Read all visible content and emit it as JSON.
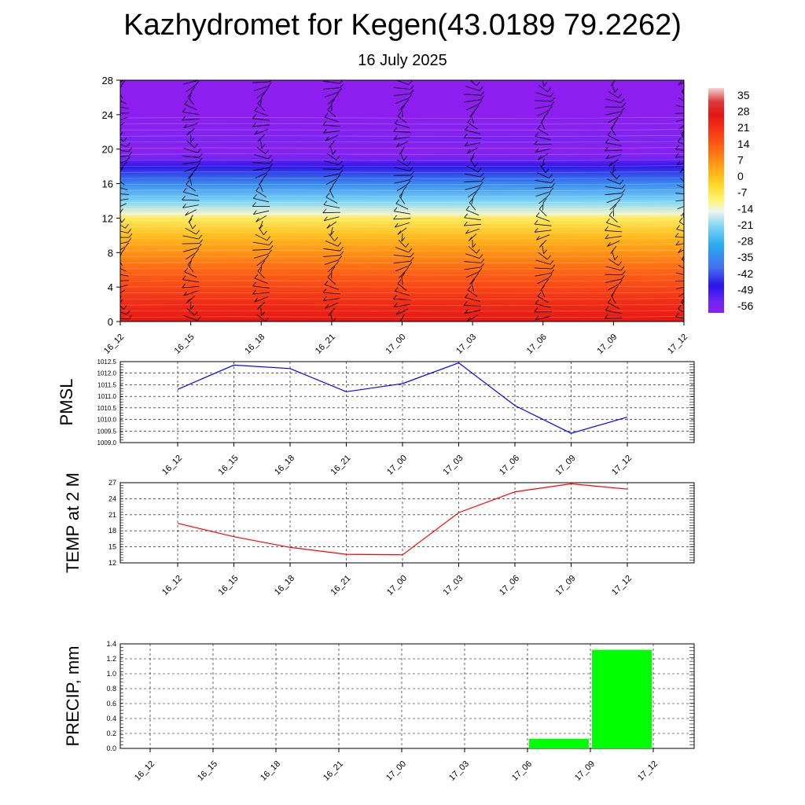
{
  "title": "Kazhydromet for Kegen(43.0189 79.2262)",
  "subtitle": "16 July 2025",
  "time_labels": [
    "16_12",
    "16_15",
    "16_18",
    "16_21",
    "17_00",
    "17_03",
    "17_06",
    "17_09",
    "17_12"
  ],
  "colors": {
    "pmsl_line": "#0000ff",
    "temp_line": "#ff0000",
    "precip_bar": "#00ff00",
    "grid": "#000000"
  },
  "chart_data": [
    {
      "type": "heatmap",
      "title": "",
      "xlabel": "",
      "ylabel": "",
      "x": [
        "16_12",
        "16_15",
        "16_18",
        "16_21",
        "17_00",
        "17_03",
        "17_06",
        "17_09",
        "17_12"
      ],
      "y_ticks": [
        0,
        4,
        8,
        12,
        16,
        20,
        24,
        28
      ],
      "ylim": [
        0,
        28
      ],
      "colorbar_labels": [
        35,
        28,
        21,
        14,
        7,
        0,
        -7,
        -14,
        -21,
        -28,
        -35,
        -42,
        -49,
        -56
      ],
      "colorbar_range": [
        -59,
        38
      ],
      "temperature_profile": {
        "heights": [
          0,
          2,
          4,
          6,
          8,
          10,
          12,
          12.5,
          14,
          16,
          18,
          19,
          20,
          21,
          22,
          24,
          28
        ],
        "values": [
          26,
          22,
          17,
          12,
          6,
          0,
          -8,
          -14,
          -22,
          -35,
          -48,
          -56,
          -59,
          -56,
          -58,
          -59,
          -59
        ]
      },
      "wind_barbs": true
    },
    {
      "type": "line",
      "ylabel": "PMSL",
      "x": [
        "16_12",
        "16_15",
        "16_18",
        "16_21",
        "17_00",
        "17_03",
        "17_06",
        "17_09",
        "17_12"
      ],
      "series": [
        {
          "values": [
            1011.3,
            1012.35,
            1012.2,
            1011.2,
            1011.55,
            1012.45,
            1010.6,
            1009.4,
            1010.1
          ]
        }
      ],
      "ylim": [
        1009.0,
        1012.5
      ],
      "y_ticks": [
        "1009.0",
        "1009.5",
        "1010.0",
        "1010.5",
        "1011.0",
        "1011.5",
        "1012.0",
        "1012.5"
      ],
      "grid": true
    },
    {
      "type": "line",
      "ylabel": "TEMP at 2 M",
      "x": [
        "16_12",
        "16_15",
        "16_18",
        "16_21",
        "17_00",
        "17_03",
        "17_06",
        "17_09",
        "17_12"
      ],
      "series": [
        {
          "values": [
            19.4,
            16.9,
            14.9,
            13.6,
            13.5,
            21.4,
            25.3,
            26.8,
            25.8
          ]
        }
      ],
      "ylim": [
        12,
        27
      ],
      "y_ticks": [
        "12",
        "15",
        "18",
        "21",
        "24",
        "27"
      ],
      "grid": true
    },
    {
      "type": "bar",
      "ylabel": "PRECIP, mm",
      "categories": [
        "16_12",
        "16_15",
        "16_18",
        "16_21",
        "17_00",
        "17_03",
        "17_06",
        "17_09",
        "17_12"
      ],
      "values": [
        0,
        0,
        0,
        0,
        0,
        0,
        0,
        0.13,
        1.32
      ],
      "ylim": [
        0,
        1.4
      ],
      "y_ticks": [
        "0.0",
        "0.2",
        "0.4",
        "0.6",
        "0.8",
        "1.0",
        "1.2",
        "1.4"
      ],
      "grid": true
    }
  ]
}
